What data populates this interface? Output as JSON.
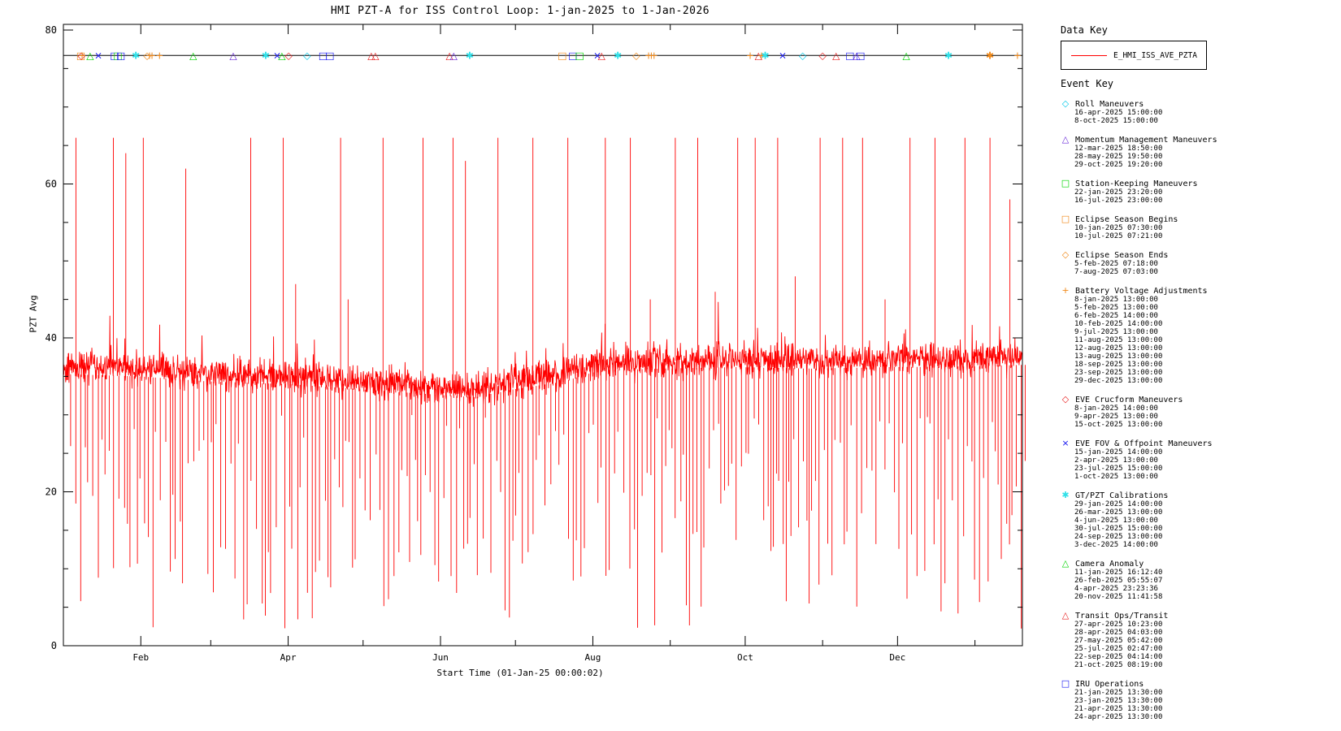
{
  "title": "HMI PZT-A for ISS Control Loop: 1-jan-2025 to 1-Jan-2026",
  "axes": {
    "ylabel": "PZT Avg",
    "xlabel": "Start Time (01-Jan-25 00:00:02)",
    "y_ticks_major": [
      0,
      20,
      40,
      60,
      80
    ],
    "x_ticks_major": [
      {
        "label": "Feb",
        "day": 31
      },
      {
        "label": "Apr",
        "day": 90
      },
      {
        "label": "Jun",
        "day": 151
      },
      {
        "label": "Aug",
        "day": 212
      },
      {
        "label": "Oct",
        "day": 273
      },
      {
        "label": "Dec",
        "day": 334
      }
    ],
    "x_ticks_minor_days": [
      59,
      120,
      181,
      243,
      304,
      365
    ]
  },
  "data_key": {
    "heading": "Data Key",
    "series_label": "E_HMI_ISS_AVE_PZTA",
    "series_color": "#ff0000"
  },
  "event_key": {
    "heading": "Event Key",
    "groups": [
      {
        "label": "Roll Maneuvers",
        "symbol": "diamond",
        "color": "cy",
        "times": [
          "16-apr-2025 15:00:00",
          "8-oct-2025 15:00:00"
        ]
      },
      {
        "label": "Momentum Management Maneuvers",
        "symbol": "triangle",
        "color": "pur",
        "times": [
          "12-mar-2025 18:50:00",
          "28-may-2025 19:50:00",
          "29-oct-2025 19:20:00"
        ]
      },
      {
        "label": "Station-Keeping Maneuvers",
        "symbol": "square",
        "color": "grn",
        "times": [
          "22-jan-2025 23:20:00",
          "16-jul-2025 23:00:00"
        ]
      },
      {
        "label": "Eclipse Season Begins",
        "symbol": "square",
        "color": "or",
        "times": [
          "10-jan-2025 07:30:00",
          "10-jul-2025 07:21:00"
        ]
      },
      {
        "label": "Eclipse Season Ends",
        "symbol": "diamond",
        "color": "or",
        "times": [
          "5-feb-2025 07:18:00",
          "7-aug-2025 07:03:00"
        ]
      },
      {
        "label": "Battery Voltage Adjustments",
        "symbol": "plus",
        "color": "or",
        "times": [
          "8-jan-2025 13:00:00",
          "5-feb-2025 13:00:00",
          "6-feb-2025 14:00:00",
          "10-feb-2025 14:00:00",
          "9-jul-2025 13:00:00",
          "11-aug-2025 13:00:00",
          "12-aug-2025 13:00:00",
          "13-aug-2025 13:00:00",
          "18-sep-2025 13:00:00",
          "23-sep-2025 13:00:00",
          "29-dec-2025 13:00:00"
        ]
      },
      {
        "label": "EVE Crucform Maneuvers",
        "symbol": "diamond",
        "color": "red",
        "times": [
          "8-jan-2025 14:00:00",
          "9-apr-2025 13:00:00",
          "15-oct-2025 13:00:00"
        ]
      },
      {
        "label": "EVE FOV & Offpoint Maneuvers",
        "symbol": "x",
        "color": "blu",
        "times": [
          "15-jan-2025 14:00:00",
          "2-apr-2025 13:00:00",
          "23-jul-2025 15:00:00",
          "1-oct-2025 13:00:00"
        ]
      },
      {
        "label": "GT/PZT Calibrations",
        "symbol": "asterisk",
        "color": "cy2",
        "times": [
          "29-jan-2025 14:00:00",
          "26-mar-2025 13:00:00",
          "4-jun-2025 13:00:00",
          "30-jul-2025 15:00:00",
          "24-sep-2025 13:00:00",
          "3-dec-2025 14:00:00"
        ]
      },
      {
        "label": "Camera Anomaly",
        "symbol": "triangle",
        "color": "grn",
        "times": [
          "11-jan-2025 16:12:40",
          "26-feb-2025 05:55:07",
          "4-apr-2025 23:23:36",
          "20-nov-2025 11:41:58"
        ]
      },
      {
        "label": "Transit Ops/Transit",
        "symbol": "triangle",
        "color": "red",
        "times": [
          "27-apr-2025 10:23:00",
          "28-apr-2025 04:03:00",
          "27-may-2025 05:42:00",
          "25-jul-2025 02:47:00",
          "22-sep-2025 04:14:00",
          "21-oct-2025 08:19:00"
        ]
      },
      {
        "label": "IRU Operations",
        "symbol": "square",
        "color": "blu",
        "times": [
          "21-jan-2025 13:30:00",
          "23-jan-2025 13:30:00",
          "21-apr-2025 13:30:00",
          "24-apr-2025 13:30:00"
        ]
      }
    ]
  },
  "palette": {
    "or": "#f08818",
    "red": "#e82020",
    "grn": "#00d400",
    "blu": "#1818f0",
    "pur": "#6928d8",
    "cy": "#00c8e8",
    "cy2": "#30e0e8"
  },
  "chart_data": {
    "type": "line",
    "title": "HMI PZT-A for ISS Control Loop: 1-jan-2025 to 1-Jan-2026",
    "xlabel": "Start Time (01-Jan-25 00:00:02)",
    "ylabel": "PZT Avg",
    "ylim": [
      0,
      80
    ],
    "x_range_days": 384,
    "grid": false,
    "legend_position": "right",
    "series_name": "E_HMI_ISS_AVE_PZTA",
    "series_color": "#ff0000",
    "event_marker_line_value": 76.7,
    "baseline_mean": [
      [
        0,
        36.3
      ],
      [
        30,
        36.0
      ],
      [
        60,
        35.3
      ],
      [
        90,
        35.0
      ],
      [
        120,
        34.3
      ],
      [
        150,
        33.6
      ],
      [
        165,
        33.3
      ],
      [
        180,
        34.3
      ],
      [
        200,
        35.3
      ],
      [
        215,
        36.8
      ],
      [
        240,
        37.0
      ],
      [
        270,
        37.2
      ],
      [
        300,
        37.0
      ],
      [
        330,
        37.2
      ],
      [
        365,
        37.3
      ],
      [
        384,
        37.5
      ]
    ],
    "band_noise_amplitude": 1.3,
    "seed": 42,
    "down_spikes": {
      "min_gap_days": 0.8,
      "var_gap_days": 1.6,
      "shallow_depth": [
        9,
        30
      ],
      "deep_depth": [
        2,
        9
      ],
      "deep_fraction": 0.2
    },
    "up_spikes": [
      [
        5,
        66
      ],
      [
        20,
        66
      ],
      [
        25,
        64
      ],
      [
        32,
        66
      ],
      [
        49,
        62
      ],
      [
        75,
        66
      ],
      [
        88,
        66
      ],
      [
        93,
        47
      ],
      [
        111,
        66
      ],
      [
        114,
        45
      ],
      [
        128,
        66
      ],
      [
        144,
        66
      ],
      [
        156,
        66
      ],
      [
        161,
        63
      ],
      [
        174,
        66
      ],
      [
        188,
        66
      ],
      [
        202,
        66
      ],
      [
        217,
        66
      ],
      [
        227,
        66
      ],
      [
        235,
        45
      ],
      [
        245,
        66
      ],
      [
        254,
        66
      ],
      [
        261,
        46
      ],
      [
        270,
        66
      ],
      [
        277,
        66
      ],
      [
        286,
        66
      ],
      [
        293,
        48
      ],
      [
        303,
        66
      ],
      [
        312,
        66
      ],
      [
        320,
        66
      ],
      [
        329,
        45
      ],
      [
        339,
        66
      ],
      [
        349,
        66
      ],
      [
        361,
        66
      ],
      [
        371,
        66
      ],
      [
        379,
        58
      ]
    ],
    "plot_markers": [
      {
        "d": 7.0,
        "sym": "square",
        "color": "or"
      },
      {
        "d": 7.2,
        "sym": "diamond",
        "color": "red"
      },
      {
        "d": 7.5,
        "sym": "plus",
        "color": "or"
      },
      {
        "d": 10.7,
        "sym": "triangle",
        "color": "grn"
      },
      {
        "d": 14,
        "sym": "x",
        "color": "blu"
      },
      {
        "d": 20.5,
        "sym": "square",
        "color": "blu"
      },
      {
        "d": 21.8,
        "sym": "square",
        "color": "grn"
      },
      {
        "d": 23,
        "sym": "square",
        "color": "blu"
      },
      {
        "d": 29,
        "sym": "asterisk",
        "color": "cy2"
      },
      {
        "d": 33.5,
        "sym": "diamond",
        "color": "or"
      },
      {
        "d": 34.5,
        "sym": "plus",
        "color": "or"
      },
      {
        "d": 35.5,
        "sym": "plus",
        "color": "or"
      },
      {
        "d": 38.5,
        "sym": "plus",
        "color": "or"
      },
      {
        "d": 52,
        "sym": "triangle",
        "color": "grn"
      },
      {
        "d": 68,
        "sym": "triangle",
        "color": "pur"
      },
      {
        "d": 81,
        "sym": "asterisk",
        "color": "cy2"
      },
      {
        "d": 85.6,
        "sym": "x",
        "color": "blu"
      },
      {
        "d": 87.5,
        "sym": "triangle",
        "color": "grn"
      },
      {
        "d": 90.2,
        "sym": "diamond",
        "color": "red"
      },
      {
        "d": 97.6,
        "sym": "diamond",
        "color": "cy"
      },
      {
        "d": 104,
        "sym": "square",
        "color": "blu"
      },
      {
        "d": 106.7,
        "sym": "square",
        "color": "blu"
      },
      {
        "d": 123.3,
        "sym": "triangle",
        "color": "red"
      },
      {
        "d": 124.9,
        "sym": "triangle",
        "color": "red"
      },
      {
        "d": 154.6,
        "sym": "triangle",
        "color": "red"
      },
      {
        "d": 156.3,
        "sym": "triangle",
        "color": "pur"
      },
      {
        "d": 162.7,
        "sym": "asterisk",
        "color": "cy2"
      },
      {
        "d": 199.8,
        "sym": "square",
        "color": "or"
      },
      {
        "d": 204,
        "sym": "square",
        "color": "blu"
      },
      {
        "d": 206.7,
        "sym": "square",
        "color": "grn"
      },
      {
        "d": 213.8,
        "sym": "x",
        "color": "blu"
      },
      {
        "d": 215.5,
        "sym": "triangle",
        "color": "red"
      },
      {
        "d": 222,
        "sym": "asterisk",
        "color": "cy2"
      },
      {
        "d": 229.4,
        "sym": "diamond",
        "color": "or"
      },
      {
        "d": 234.3,
        "sym": "plus",
        "color": "or"
      },
      {
        "d": 235.4,
        "sym": "plus",
        "color": "or"
      },
      {
        "d": 236.5,
        "sym": "plus",
        "color": "or"
      },
      {
        "d": 275,
        "sym": "plus",
        "color": "or"
      },
      {
        "d": 278.3,
        "sym": "triangle",
        "color": "red"
      },
      {
        "d": 279.5,
        "sym": "plus",
        "color": "or"
      },
      {
        "d": 281,
        "sym": "asterisk",
        "color": "cy2"
      },
      {
        "d": 288,
        "sym": "x",
        "color": "blu"
      },
      {
        "d": 296,
        "sym": "diamond",
        "color": "cy"
      },
      {
        "d": 304,
        "sym": "diamond",
        "color": "red"
      },
      {
        "d": 309.4,
        "sym": "triangle",
        "color": "red"
      },
      {
        "d": 315,
        "sym": "square",
        "color": "blu"
      },
      {
        "d": 317.6,
        "sym": "triangle",
        "color": "pur"
      },
      {
        "d": 319.2,
        "sym": "square",
        "color": "blu"
      },
      {
        "d": 337.5,
        "sym": "triangle",
        "color": "grn"
      },
      {
        "d": 354.4,
        "sym": "asterisk",
        "color": "cy2"
      },
      {
        "d": 371,
        "sym": "asterisk",
        "color": "or"
      },
      {
        "d": 382,
        "sym": "plus",
        "color": "or"
      }
    ]
  }
}
